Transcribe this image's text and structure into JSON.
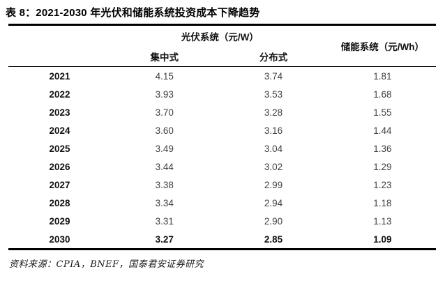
{
  "title": "表 8：2021-2030 年光伏和储能系统投资成本下降趋势",
  "table": {
    "group_headers": {
      "pv_system": "光伏系统（元/W）",
      "storage_system": "储能系统（元/Wh）"
    },
    "sub_headers": {
      "centralized": "集中式",
      "distributed": "分布式"
    },
    "rows": [
      {
        "year": "2021",
        "centralized": "4.15",
        "distributed": "3.74",
        "storage": "1.81",
        "bold": false
      },
      {
        "year": "2022",
        "centralized": "3.93",
        "distributed": "3.53",
        "storage": "1.68",
        "bold": false
      },
      {
        "year": "2023",
        "centralized": "3.70",
        "distributed": "3.28",
        "storage": "1.55",
        "bold": false
      },
      {
        "year": "2024",
        "centralized": "3.60",
        "distributed": "3.16",
        "storage": "1.44",
        "bold": false
      },
      {
        "year": "2025",
        "centralized": "3.49",
        "distributed": "3.04",
        "storage": "1.36",
        "bold": false
      },
      {
        "year": "2026",
        "centralized": "3.44",
        "distributed": "3.02",
        "storage": "1.29",
        "bold": false
      },
      {
        "year": "2027",
        "centralized": "3.38",
        "distributed": "2.99",
        "storage": "1.23",
        "bold": false
      },
      {
        "year": "2028",
        "centralized": "3.34",
        "distributed": "2.94",
        "storage": "1.18",
        "bold": false
      },
      {
        "year": "2029",
        "centralized": "3.31",
        "distributed": "2.90",
        "storage": "1.13",
        "bold": false
      },
      {
        "year": "2030",
        "centralized": "3.27",
        "distributed": "2.85",
        "storage": "1.09",
        "bold": true
      }
    ]
  },
  "source": "资料来源：CPIA，BNEF，国泰君安证券研究",
  "colors": {
    "rule": "#000000",
    "value_text": "#3f3f3f",
    "strong_text": "#111111",
    "background": "#ffffff"
  }
}
